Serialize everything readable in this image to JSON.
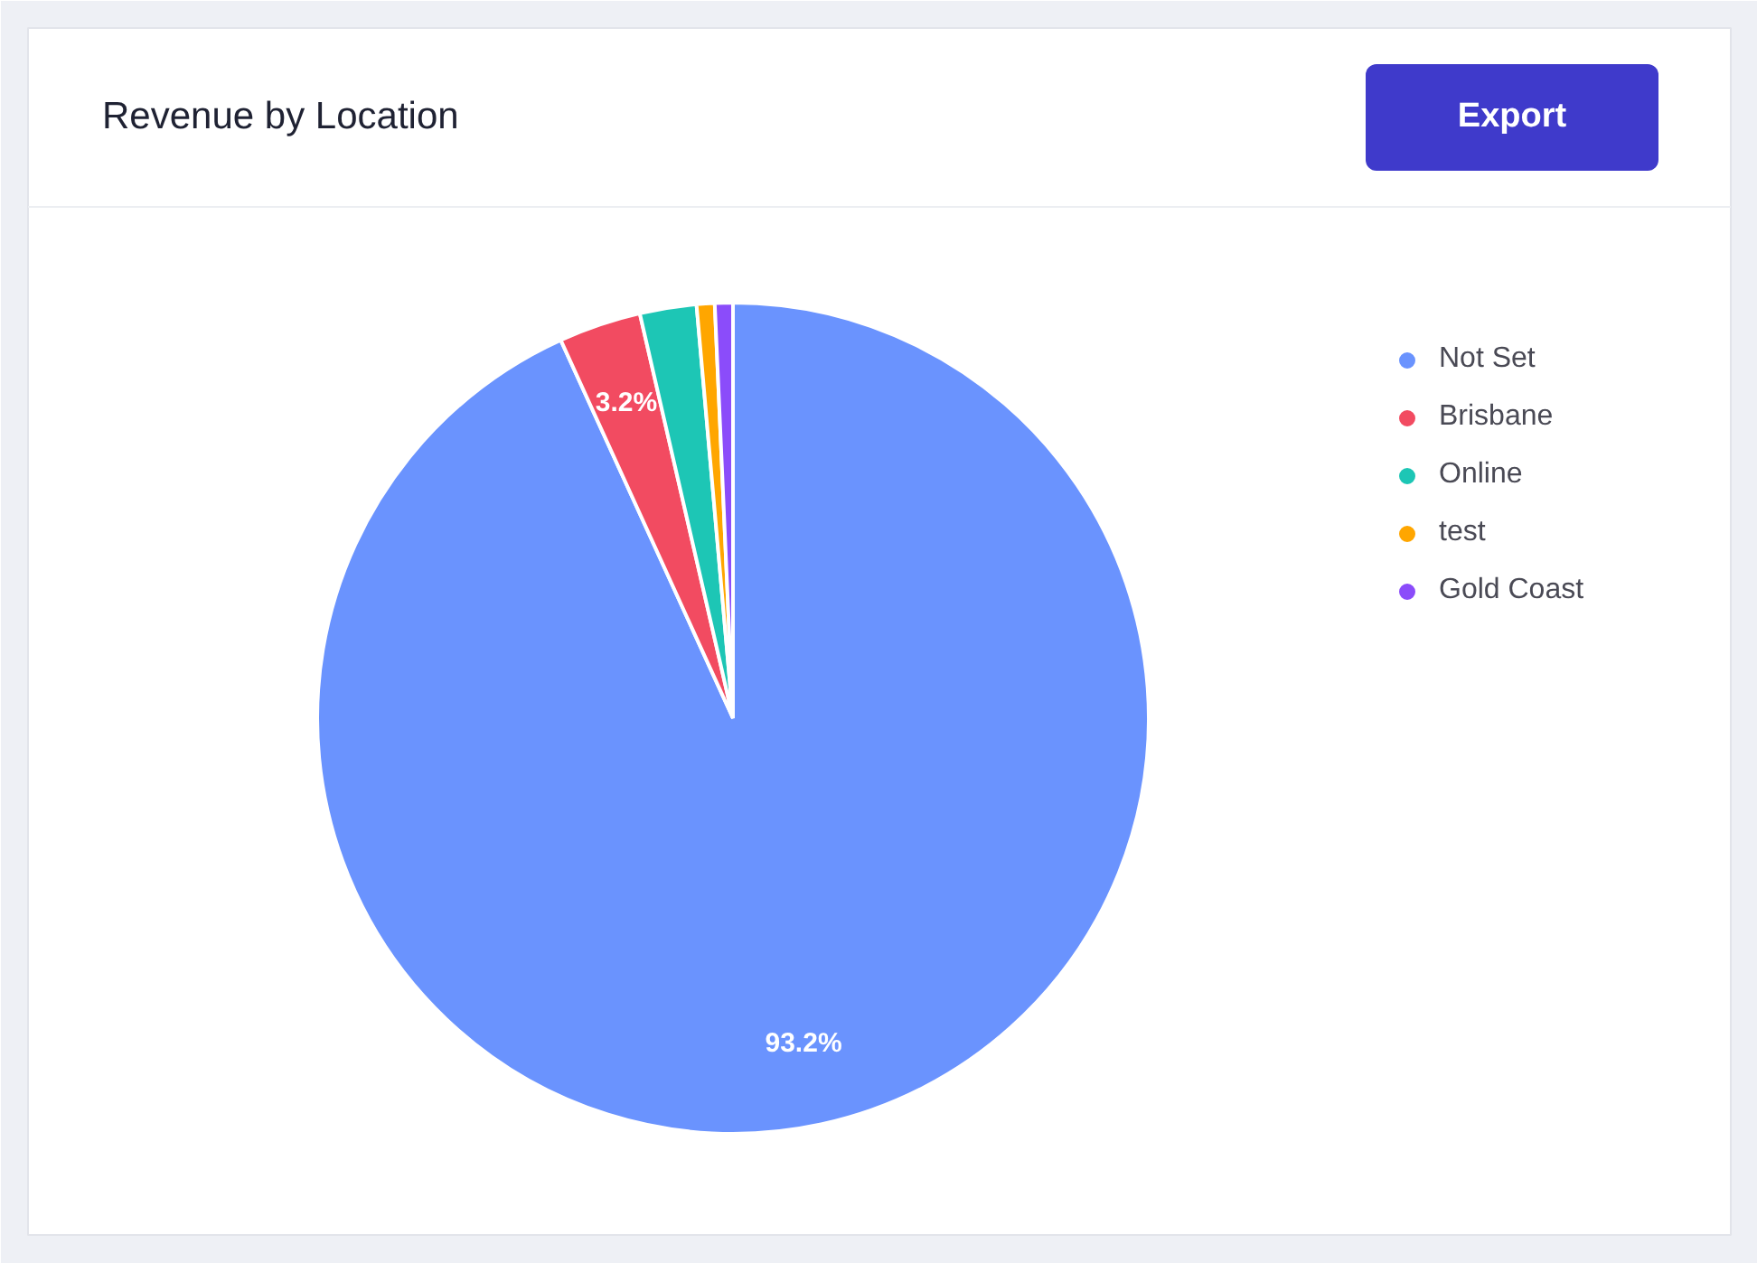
{
  "chart_data": {
    "type": "pie",
    "title": "Revenue by Location",
    "categories": [
      "Not Set",
      "Brisbane",
      "Online",
      "test",
      "Gold Coast"
    ],
    "values": [
      93.2,
      3.2,
      2.2,
      0.7,
      0.7
    ],
    "colors": [
      "#6a93fe",
      "#f24b61",
      "#1dc6b5",
      "#ffa600",
      "#8b4cfa"
    ],
    "value_labels": [
      "93.2%",
      "3.2%",
      null,
      null,
      null
    ],
    "legend": "right",
    "annotations": [
      "Export"
    ]
  }
}
